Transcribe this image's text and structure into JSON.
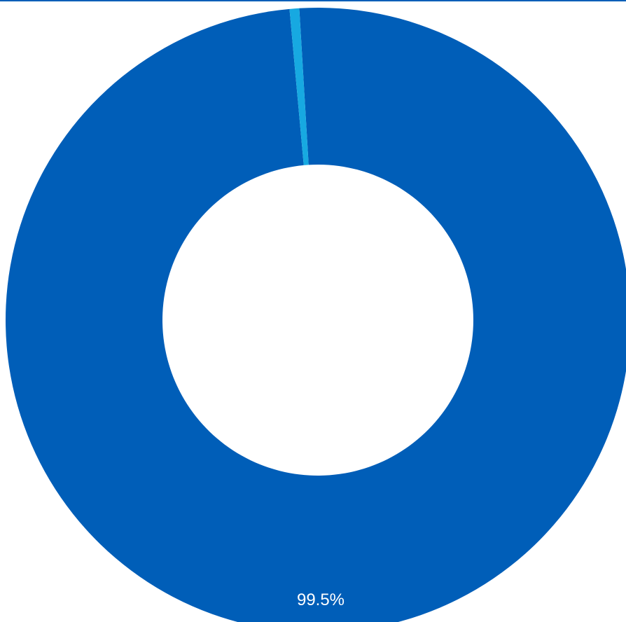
{
  "chart_data": {
    "type": "pie",
    "variant": "donut",
    "slices": [
      {
        "value": 99.5,
        "label": "99.5%",
        "color": "#005eb8"
      },
      {
        "value": 0.5,
        "label": "",
        "color": "#17a9e1"
      }
    ],
    "legend": "none"
  },
  "colors": {
    "top_rule": "#005eb8",
    "background": "#ffffff"
  }
}
